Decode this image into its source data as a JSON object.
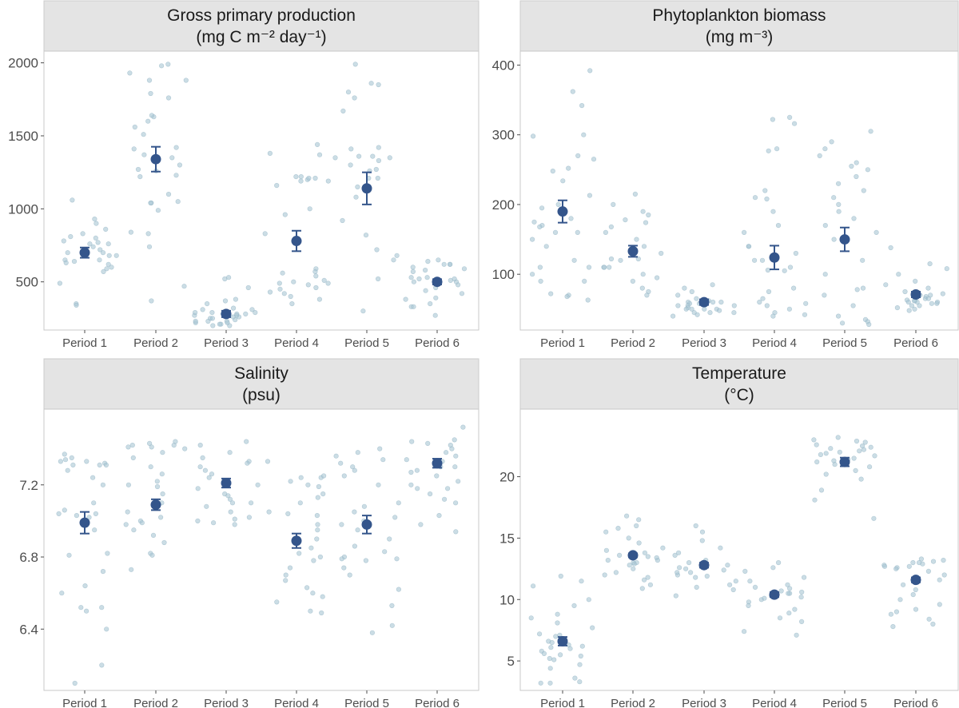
{
  "chart_data": [
    {
      "type": "scatter",
      "title": "Gross primary production",
      "subtitle": "(mg C m⁻² day⁻¹)",
      "categories": [
        "Period 1",
        "Period 2",
        "Period 3",
        "Period 4",
        "Period 5",
        "Period 6"
      ],
      "ylim": [
        170,
        2080
      ],
      "yticks": [
        500,
        1000,
        1500,
        2000
      ],
      "means": [
        700,
        1340,
        280,
        780,
        1140,
        500
      ],
      "errors": [
        35,
        85,
        22,
        70,
        110,
        18
      ],
      "points": [
        [
          930,
          1060,
          740,
          680,
          900,
          800,
          780,
          680,
          770,
          860,
          720,
          640,
          570,
          650,
          760,
          700,
          630,
          700,
          620,
          590,
          490,
          830,
          650,
          350,
          810,
          340,
          600,
          760
        ],
        [
          1790,
          1040,
          1420,
          1560,
          1410,
          1370,
          1600,
          1260,
          1880,
          1630,
          1350,
          1270,
          1640,
          1300,
          1230,
          1510,
          990,
          1050,
          1100,
          840,
          1980,
          1930,
          1990,
          1880,
          1760,
          1220,
          830,
          740,
          1040,
          470,
          370
        ],
        [
          220,
          250,
          310,
          280,
          270,
          250,
          290,
          210,
          230,
          280,
          520,
          530,
          460,
          320,
          260,
          230,
          200,
          280,
          230,
          270,
          200,
          370,
          290,
          350,
          220,
          310,
          260,
          290,
          240,
          380,
          210
        ],
        [
          590,
          480,
          560,
          570,
          490,
          1220,
          1160,
          1190,
          1200,
          1370,
          1220,
          1210,
          1380,
          510,
          430,
          450,
          500,
          540,
          420,
          380,
          490,
          460,
          400,
          350,
          830,
          960,
          1000,
          1440,
          1210,
          1190
        ],
        [
          1360,
          1350,
          1760,
          1350,
          1410,
          1210,
          1270,
          1330,
          1210,
          820,
          720,
          650,
          1850,
          1670,
          1860,
          1800,
          520,
          300,
          1990,
          1420,
          1150,
          1360,
          1300,
          1080,
          920,
          1260,
          680
        ],
        [
          620,
          650,
          480,
          500,
          440,
          460,
          390,
          500,
          420,
          530,
          380,
          620,
          350,
          330,
          330,
          600,
          570,
          520,
          510,
          620,
          640,
          520,
          270,
          590,
          580,
          530
        ]
      ]
    },
    {
      "type": "scatter",
      "title": "Phytoplankton biomass",
      "subtitle": "(mg m⁻³)",
      "categories": [
        "Period 1",
        "Period 2",
        "Period 3",
        "Period 4",
        "Period 5",
        "Period 6"
      ],
      "ylim": [
        20,
        420
      ],
      "yticks": [
        100,
        200,
        300,
        400
      ],
      "means": [
        190,
        133,
        60,
        124,
        150,
        71
      ],
      "errors": [
        16,
        8,
        4,
        17,
        17,
        4
      ],
      "points": [
        [
          392,
          342,
          362,
          270,
          248,
          252,
          234,
          160,
          170,
          200,
          175,
          180,
          160,
          150,
          140,
          120,
          110,
          90,
          70,
          72,
          110,
          100,
          300,
          298,
          265,
          213,
          195,
          168,
          90,
          68,
          63
        ],
        [
          200,
          190,
          178,
          215,
          185,
          174,
          168,
          160,
          150,
          140,
          130,
          122,
          122,
          110,
          100,
          95,
          90,
          80,
          75,
          70,
          110,
          120,
          110
        ],
        [
          55,
          60,
          50,
          45,
          40,
          55,
          58,
          60,
          65,
          62,
          55,
          50,
          48,
          45,
          42,
          50,
          52,
          58,
          80,
          75,
          70,
          85,
          60,
          62,
          50,
          45
        ],
        [
          280,
          325,
          322,
          277,
          316,
          208,
          140,
          120,
          106,
          105,
          80,
          75,
          65,
          60,
          58,
          55,
          50,
          45,
          40,
          42,
          110,
          120,
          130,
          140,
          160,
          170,
          190,
          210,
          220
        ],
        [
          305,
          290,
          280,
          270,
          260,
          255,
          240,
          230,
          220,
          210,
          200,
          190,
          180,
          170,
          160,
          150,
          120,
          100,
          80,
          78,
          70,
          40,
          35,
          30,
          32,
          28,
          250,
          55
        ],
        [
          138,
          115,
          108,
          100,
          90,
          85,
          80,
          75,
          70,
          68,
          65,
          63,
          62,
          60,
          58,
          55,
          52,
          50,
          48,
          60,
          65,
          70,
          72,
          60,
          55,
          58,
          62
        ]
      ]
    },
    {
      "type": "scatter",
      "title": "Salinity",
      "subtitle": "(psu)",
      "categories": [
        "Period 1",
        "Period 2",
        "Period 3",
        "Period 4",
        "Period 5",
        "Period 6"
      ],
      "ylim": [
        6.06,
        7.62
      ],
      "yticks": [
        6.4,
        6.8,
        7.2
      ],
      "means": [
        6.99,
        7.09,
        7.21,
        6.89,
        6.98,
        7.32
      ],
      "errors": [
        0.06,
        0.03,
        0.025,
        0.04,
        0.05,
        0.025
      ],
      "points": [
        [
          7.34,
          7.35,
          7.33,
          7.37,
          7.32,
          7.33,
          7.28,
          7.31,
          7.31,
          7.31,
          7.24,
          7.2,
          7.1,
          7.06,
          7.04,
          7.04,
          7.03,
          7.02,
          6.95,
          6.82,
          6.81,
          6.72,
          6.64,
          6.6,
          6.52,
          6.52,
          6.5,
          6.4,
          6.2,
          6.1
        ],
        [
          7.44,
          7.43,
          7.42,
          7.41,
          7.42,
          7.38,
          7.35,
          7.3,
          7.26,
          7.22,
          7.2,
          7.19,
          7.15,
          7.1,
          7.08,
          7.05,
          7.02,
          7.0,
          6.99,
          6.98,
          6.95,
          6.92,
          6.88,
          6.82,
          6.81,
          6.73,
          7.41,
          7.4
        ],
        [
          7.44,
          7.42,
          7.38,
          7.35,
          7.33,
          7.3,
          7.28,
          7.26,
          7.24,
          7.22,
          7.2,
          7.18,
          7.15,
          7.14,
          7.12,
          7.1,
          7.1,
          7.08,
          7.05,
          7.02,
          7.01,
          7.0,
          6.99,
          6.98,
          7.32
        ],
        [
          7.24,
          7.24,
          7.22,
          7.2,
          7.19,
          7.15,
          7.13,
          7.1,
          7.05,
          7.04,
          7.03,
          6.98,
          6.95,
          6.9,
          6.85,
          6.82,
          6.8,
          6.78,
          6.74,
          6.7,
          6.67,
          6.63,
          6.6,
          6.58,
          6.55,
          6.5,
          6.49,
          7.33,
          7.25
        ],
        [
          7.4,
          7.38,
          7.36,
          7.34,
          7.32,
          7.3,
          7.28,
          7.25,
          7.2,
          7.1,
          7.08,
          7.05,
          7.02,
          7.0,
          6.98,
          6.95,
          6.9,
          6.86,
          6.83,
          6.8,
          6.79,
          6.78,
          6.74,
          6.7,
          6.62,
          6.53,
          6.42,
          6.38,
          6.79
        ],
        [
          7.52,
          7.45,
          7.44,
          7.43,
          7.42,
          7.4,
          7.38,
          7.36,
          7.34,
          7.33,
          7.3,
          7.3,
          7.28,
          7.27,
          7.25,
          7.22,
          7.2,
          7.18,
          7.18,
          7.15,
          7.12,
          7.1,
          7.03,
          6.98,
          6.94
        ]
      ]
    },
    {
      "type": "scatter",
      "title": "Temperature",
      "subtitle": "(°C)",
      "categories": [
        "Period 1",
        "Period 2",
        "Period 3",
        "Period 4",
        "Period 5",
        "Period 6"
      ],
      "ylim": [
        2.6,
        25.5
      ],
      "yticks": [
        5,
        10,
        15,
        20
      ],
      "means": [
        6.6,
        13.6,
        12.8,
        10.4,
        21.2,
        11.6
      ],
      "errors": [
        0.35,
        0.15,
        0.2,
        0.2,
        0.35,
        0.2
      ],
      "points": [
        [
          11.9,
          11.5,
          11.1,
          10.0,
          9.5,
          8.8,
          8.5,
          8.1,
          7.7,
          7.2,
          7.0,
          6.6,
          6.5,
          6.3,
          6.2,
          6.1,
          6.0,
          5.8,
          5.6,
          5.5,
          5.4,
          5.2,
          5.1,
          4.7,
          4.4,
          3.6,
          3.3,
          3.2,
          3.2,
          7.1
        ],
        [
          16.8,
          16.5,
          16.0,
          15.8,
          15.5,
          15.0,
          14.6,
          14.2,
          14.0,
          13.8,
          13.6,
          13.4,
          13.2,
          13.0,
          12.8,
          12.5,
          12.2,
          12.0,
          11.8,
          11.6,
          11.2,
          10.9,
          13.5,
          13.2,
          13.0,
          12.9
        ],
        [
          16.0,
          15.5,
          14.8,
          14.2,
          13.8,
          13.6,
          13.2,
          13.0,
          12.8,
          12.6,
          12.4,
          12.2,
          12.0,
          11.8,
          11.5,
          11.2,
          11.0,
          10.8,
          10.3,
          13.0,
          12.5,
          12.2,
          11.9
        ],
        [
          13.0,
          12.6,
          12.3,
          11.8,
          11.5,
          11.2,
          11.0,
          10.9,
          10.7,
          10.6,
          10.5,
          10.3,
          10.2,
          10.0,
          9.8,
          9.5,
          9.2,
          8.9,
          8.5,
          8.2,
          7.4,
          7.1,
          10.1,
          10.5
        ],
        [
          23.2,
          23.0,
          22.8,
          22.6,
          22.5,
          22.4,
          22.3,
          22.2,
          22.1,
          22.0,
          21.9,
          21.8,
          21.7,
          21.5,
          21.4,
          21.3,
          21.2,
          21.0,
          20.8,
          20.5,
          20.2,
          19.8,
          18.9,
          18.1,
          16.6,
          22.9
        ],
        [
          13.3,
          13.2,
          13.1,
          13.0,
          12.9,
          12.8,
          12.7,
          12.6,
          12.5,
          12.3,
          12.0,
          11.6,
          11.2,
          10.8,
          10.4,
          10.0,
          9.6,
          9.2,
          9.0,
          8.8,
          8.4,
          8.0,
          7.8,
          13.0,
          12.7
        ]
      ]
    }
  ]
}
